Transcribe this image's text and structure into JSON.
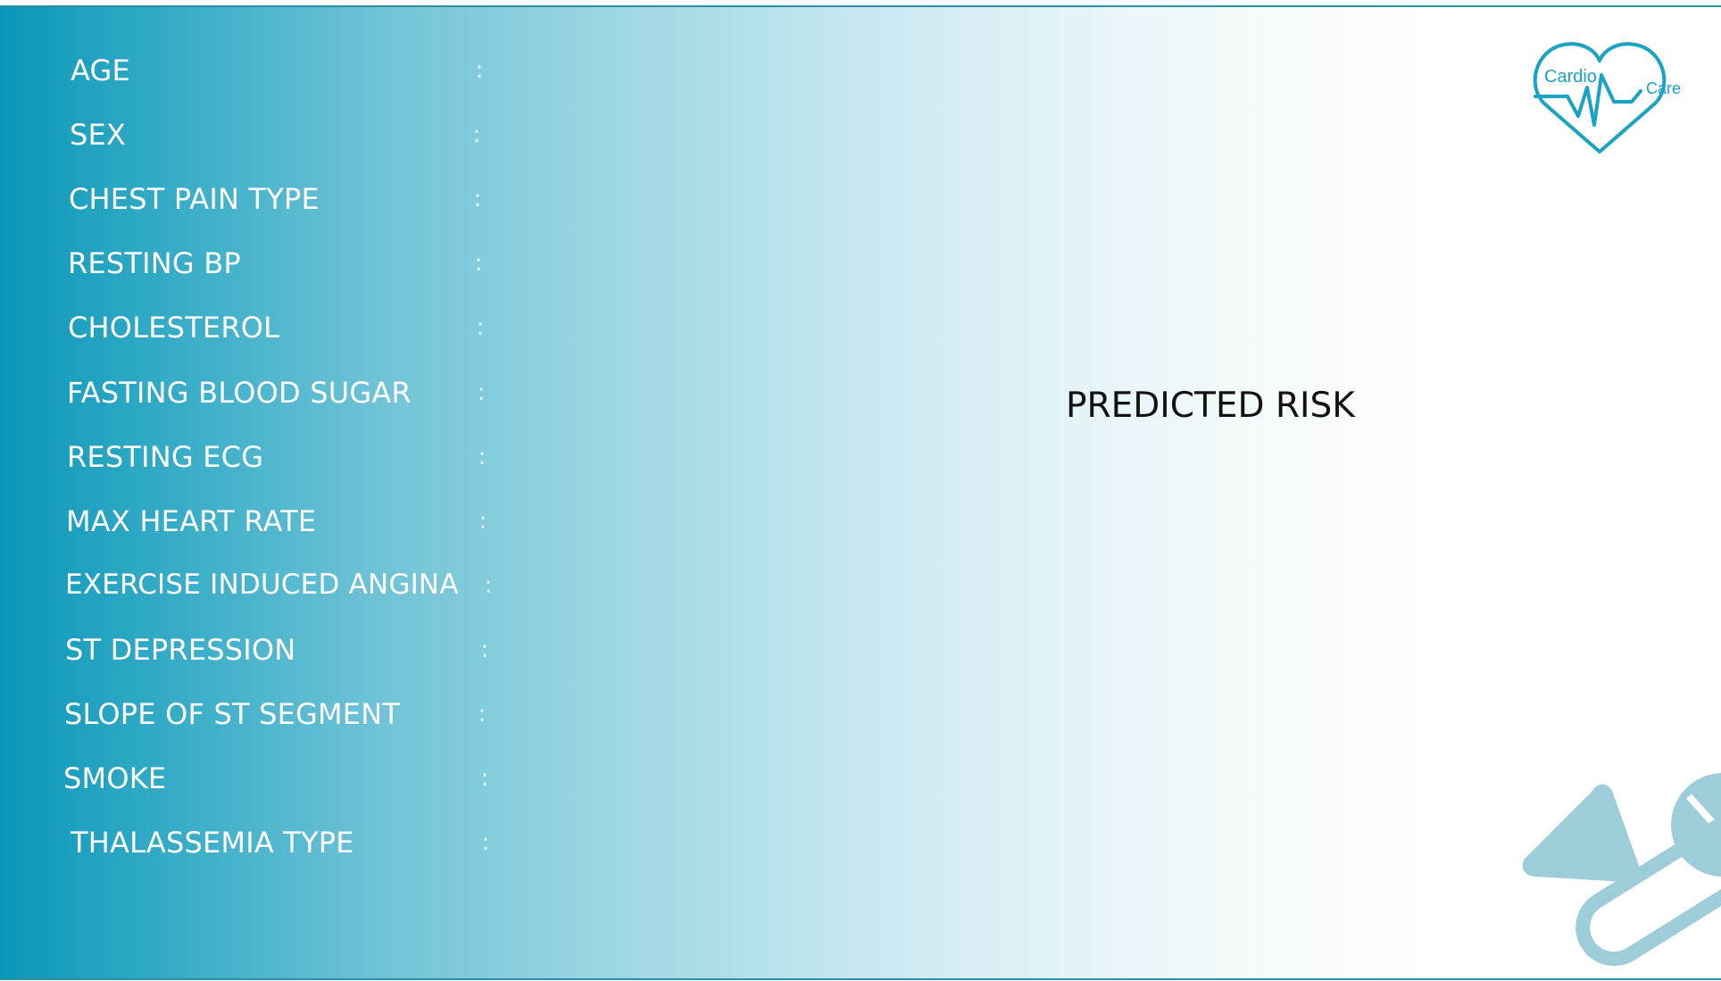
{
  "logo": {
    "line1": "Cardio",
    "line2": "Care",
    "color": "#1aa3c2"
  },
  "fields": [
    {
      "label": "AGE",
      "colon": ":"
    },
    {
      "label": "SEX",
      "colon": ":"
    },
    {
      "label": "CHEST PAIN TYPE",
      "colon": ":"
    },
    {
      "label": "RESTING BP",
      "colon": ":"
    },
    {
      "label": "CHOLESTEROL",
      "colon": ":"
    },
    {
      "label": "FASTING BLOOD SUGAR",
      "colon": ":"
    },
    {
      "label": "RESTING ECG",
      "colon": ":"
    },
    {
      "label": "MAX HEART RATE",
      "colon": ":"
    },
    {
      "label": "EXERCISE INDUCED ANGINA",
      "colon": ":"
    },
    {
      "label": "ST DEPRESSION",
      "colon": ":"
    },
    {
      "label": "SLOPE OF ST SEGMENT",
      "colon": ":"
    },
    {
      "label": "SMOKE",
      "colon": ":"
    },
    {
      "label": "THALASSEMIA TYPE",
      "colon": ":"
    }
  ],
  "result": {
    "title": "PREDICTED RISK"
  },
  "colors": {
    "gradient_start": "#0a97b9",
    "gradient_end": "#ffffff",
    "decor": "#9ccdd9"
  }
}
